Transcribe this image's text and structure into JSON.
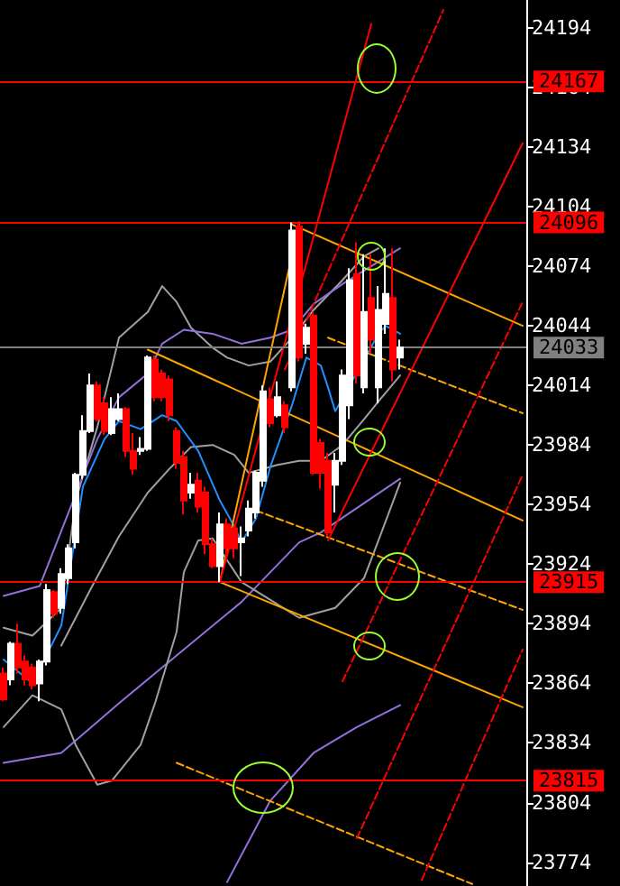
{
  "chart_data": {
    "type": "candlestick",
    "categories": [
      null,
      null,
      null,
      null,
      null,
      null,
      null,
      null,
      null,
      null,
      null,
      null,
      null,
      null,
      null,
      null,
      null,
      null,
      null,
      null,
      null,
      null,
      null,
      null,
      null,
      null,
      null,
      null,
      null,
      null,
      null,
      null,
      null,
      null,
      null,
      null,
      null,
      null,
      null,
      null,
      null,
      null,
      null,
      null,
      null,
      null,
      null,
      null,
      null,
      null,
      null,
      null,
      null,
      null,
      null,
      null,
      null,
      null,
      null,
      null,
      null,
      null,
      null,
      null,
      null,
      null,
      null,
      null,
      null,
      null,
      null,
      null,
      null
    ],
    "ylim": [
      23762,
      24208
    ],
    "yticks": [
      24194,
      24164,
      24134,
      24104,
      24074,
      24044,
      24014,
      23984,
      23954,
      23924,
      23894,
      23864,
      23834,
      23804,
      23774
    ],
    "tick_labels": "y",
    "grid": false,
    "marker": "none",
    "ref_lines": [
      {
        "axis": "y",
        "value": 24167,
        "label": "24167",
        "color": "#ff0000"
      },
      {
        "axis": "y",
        "value": 24096,
        "label": "24096",
        "color": "#ff0000"
      },
      {
        "axis": "y",
        "value": 24033,
        "label": "24033",
        "color": "#808080"
      },
      {
        "axis": "y",
        "value": 23915,
        "label": "23915",
        "color": "#ff0000"
      },
      {
        "axis": "y",
        "value": 23815,
        "label": "23815",
        "color": "#ff0000"
      }
    ],
    "series": [
      {
        "type": "line",
        "color": "#9370db",
        "line_style": "solid",
        "values": [
          23824,
          null,
          null,
          null,
          null,
          null,
          null,
          null,
          23829,
          null,
          null,
          null,
          null,
          null,
          null,
          null,
          23854,
          null,
          null,
          null,
          null,
          null,
          null,
          null,
          23878,
          null,
          null,
          null,
          null,
          null,
          null,
          null,
          null,
          23905,
          null,
          null,
          null,
          null,
          null,
          null,
          null,
          23935,
          null,
          null,
          23940,
          null,
          null,
          null,
          null,
          null,
          null,
          null,
          null,
          null,
          null,
          23967,
          null,
          null,
          null,
          null,
          null,
          null,
          null,
          null,
          null,
          null,
          null,
          null,
          null,
          null,
          null,
          null,
          null
        ]
      },
      {
        "type": "line",
        "color": "#9370db",
        "line_style": "solid",
        "values": [
          null,
          null,
          null,
          null,
          null,
          null,
          null,
          null,
          null,
          null,
          null,
          null,
          null,
          null,
          null,
          null,
          null,
          null,
          null,
          null,
          null,
          null,
          null,
          null,
          null,
          null,
          null,
          null,
          null,
          null,
          null,
          23764,
          null,
          null,
          null,
          null,
          null,
          23805,
          null,
          null,
          null,
          null,
          null,
          23829,
          null,
          null,
          null,
          null,
          null,
          23842,
          null,
          null,
          null,
          null,
          null,
          23853,
          null,
          null,
          null,
          null,
          null,
          null,
          null,
          null,
          null,
          null,
          null,
          null,
          null,
          null,
          null,
          null,
          null
        ]
      },
      {
        "type": "line",
        "color": "#a0a0a0",
        "line_style": "solid",
        "values": [
          23892,
          null,
          null,
          null,
          23888,
          null,
          null,
          null,
          23902,
          null,
          23956,
          null,
          null,
          23993,
          null,
          null,
          24038,
          null,
          null,
          null,
          24051,
          null,
          24064,
          null,
          24056,
          null,
          24043,
          null,
          null,
          24033,
          null,
          24028,
          null,
          null,
          24024,
          null,
          null,
          24026,
          null,
          null,
          24038,
          null,
          null,
          24052,
          null,
          null,
          null,
          24067,
          null,
          null,
          24079,
          null,
          24083,
          null,
          null,
          null,
          null,
          null,
          null,
          null,
          null,
          null,
          null,
          null,
          null,
          null,
          null,
          null,
          null,
          null,
          null,
          null,
          null
        ]
      },
      {
        "type": "line",
        "color": "#a0a0a0",
        "line_style": "solid",
        "values": [
          null,
          null,
          null,
          null,
          null,
          null,
          null,
          null,
          23883,
          null,
          null,
          null,
          23911,
          null,
          null,
          null,
          23938,
          null,
          null,
          null,
          23960,
          null,
          null,
          23972,
          null,
          null,
          23983,
          null,
          null,
          23984,
          null,
          null,
          23979,
          null,
          23970,
          null,
          null,
          null,
          23974,
          null,
          null,
          23976,
          null,
          null,
          23976,
          null,
          null,
          23984,
          null,
          null,
          23997,
          null,
          24006,
          null,
          null,
          24019,
          null,
          null,
          null,
          null,
          null,
          null,
          null,
          null,
          null,
          null,
          null,
          null,
          null,
          null,
          null,
          null,
          null
        ]
      },
      {
        "type": "line",
        "color": "#a0a0a0",
        "line_style": "solid",
        "values": [
          23842,
          null,
          null,
          null,
          23858,
          null,
          null,
          null,
          23851,
          null,
          23833,
          null,
          null,
          23813,
          null,
          23815,
          null,
          null,
          null,
          23833,
          null,
          23854,
          null,
          null,
          23890,
          23920,
          null,
          23936,
          null,
          23937,
          null,
          null,
          null,
          23915,
          null,
          null,
          null,
          23906,
          null,
          null,
          null,
          23897,
          null,
          null,
          null,
          null,
          23902,
          null,
          null,
          null,
          23917,
          null,
          23936,
          null,
          null,
          23965,
          null,
          null,
          null,
          null,
          null,
          null,
          null,
          null,
          null,
          null,
          null,
          null,
          null,
          null,
          null,
          null,
          null
        ]
      },
      {
        "type": "line",
        "color": "#9370db",
        "line_style": "solid",
        "values": [
          23908,
          null,
          null,
          null,
          null,
          23913,
          null,
          null,
          null,
          null,
          null,
          null,
          null,
          23987,
          null,
          null,
          24008,
          null,
          null,
          null,
          24020,
          null,
          24035,
          null,
          null,
          24042,
          null,
          null,
          null,
          24040,
          null,
          null,
          null,
          24035,
          null,
          null,
          null,
          24038,
          null,
          null,
          24042,
          null,
          null,
          24055,
          null,
          null,
          null,
          24065,
          null,
          null,
          null,
          null,
          null,
          null,
          null,
          24083,
          null,
          null,
          null,
          null,
          null,
          null,
          null,
          null,
          null,
          null,
          null,
          null,
          null,
          null,
          null,
          null,
          null
        ]
      },
      {
        "type": "line",
        "color": "#1e90ff",
        "line_style": "solid",
        "values": [
          23876,
          null,
          null,
          null,
          23864,
          null,
          null,
          null,
          23893,
          null,
          null,
          23963,
          null,
          null,
          23987,
          null,
          23996,
          null,
          null,
          23992,
          null,
          null,
          23999,
          null,
          23996,
          null,
          null,
          23981,
          null,
          null,
          23956,
          null,
          23943,
          23935,
          null,
          23947,
          null,
          23973,
          null,
          null,
          24004,
          null,
          24028,
          null,
          24024,
          24013,
          24001,
          null,
          null,
          null,
          null,
          null,
          24040,
          24044,
          null,
          24040,
          null,
          null,
          null,
          null,
          null,
          null,
          null,
          null,
          null,
          null,
          null,
          null,
          null,
          null,
          null,
          null,
          null
        ]
      },
      {
        "type": "line",
        "color": "#ffa500",
        "line_style": "solid",
        "values": [
          null,
          null,
          null,
          null,
          null,
          null,
          null,
          null,
          null,
          null,
          null,
          null,
          null,
          null,
          null,
          null,
          null,
          null,
          null,
          null,
          null,
          null,
          null,
          null,
          null,
          null,
          null,
          null,
          null,
          null,
          null,
          null,
          null,
          null,
          null,
          null,
          null,
          null,
          null,
          null,
          24095,
          null,
          null,
          null,
          null,
          null,
          null,
          null,
          null,
          null,
          null,
          null,
          null,
          null,
          null,
          null,
          null,
          null,
          null,
          null,
          null,
          null,
          null,
          null,
          null,
          null,
          null,
          null,
          null,
          null,
          null,
          null,
          24044
        ]
      },
      {
        "type": "line",
        "color": "#ffa500",
        "line_style": "solid",
        "values": [
          null,
          null,
          null,
          null,
          null,
          null,
          null,
          null,
          null,
          null,
          null,
          null,
          null,
          null,
          null,
          null,
          null,
          null,
          null,
          null,
          24032,
          null,
          null,
          null,
          null,
          null,
          null,
          null,
          null,
          null,
          null,
          null,
          null,
          null,
          null,
          null,
          null,
          null,
          null,
          null,
          null,
          null,
          null,
          null,
          null,
          null,
          null,
          null,
          null,
          null,
          null,
          null,
          null,
          null,
          null,
          null,
          null,
          null,
          null,
          null,
          null,
          null,
          null,
          null,
          null,
          null,
          null,
          null,
          null,
          null,
          null,
          null,
          23946
        ]
      },
      {
        "type": "line",
        "color": "#ffa500",
        "line_style": "solid",
        "values": [
          null,
          null,
          null,
          null,
          null,
          null,
          null,
          null,
          null,
          null,
          null,
          null,
          null,
          null,
          null,
          null,
          null,
          null,
          null,
          null,
          null,
          null,
          null,
          null,
          null,
          null,
          null,
          null,
          null,
          null,
          23915,
          null,
          null,
          null,
          null,
          null,
          null,
          null,
          null,
          null,
          null,
          null,
          null,
          null,
          null,
          null,
          null,
          null,
          null,
          null,
          null,
          null,
          null,
          null,
          null,
          null,
          null,
          null,
          null,
          null,
          null,
          null,
          null,
          null,
          null,
          null,
          null,
          null,
          null,
          null,
          null,
          null,
          23852
        ]
      },
      {
        "type": "line",
        "color": "#ffa500",
        "line_style": "solid",
        "values": [
          null,
          null,
          null,
          null,
          null,
          null,
          null,
          null,
          null,
          null,
          null,
          null,
          null,
          null,
          null,
          null,
          null,
          null,
          null,
          null,
          null,
          null,
          null,
          null,
          null,
          null,
          null,
          null,
          null,
          null,
          23915,
          null,
          null,
          null,
          null,
          null,
          null,
          null,
          null,
          null,
          null,
          24096,
          null,
          null,
          null,
          null,
          null,
          null,
          null,
          null,
          null,
          null,
          null,
          null,
          null,
          null,
          null,
          null,
          null,
          null,
          null,
          null,
          null,
          null,
          null,
          null,
          null,
          null,
          null,
          null,
          null,
          null,
          null
        ]
      },
      {
        "type": "line",
        "color": "#ffa500",
        "line_style": "dashed",
        "values": [
          null,
          null,
          null,
          null,
          null,
          null,
          null,
          null,
          null,
          null,
          null,
          null,
          null,
          null,
          null,
          null,
          null,
          null,
          null,
          null,
          null,
          null,
          null,
          null,
          null,
          null,
          null,
          null,
          null,
          null,
          null,
          null,
          null,
          null,
          null,
          null,
          null,
          null,
          null,
          null,
          null,
          null,
          null,
          null,
          null,
          24038,
          null,
          null,
          null,
          null,
          null,
          null,
          null,
          null,
          null,
          null,
          null,
          null,
          null,
          null,
          null,
          null,
          null,
          null,
          null,
          null,
          null,
          null,
          null,
          null,
          null,
          null,
          24000
        ]
      },
      {
        "type": "line",
        "color": "#ffa500",
        "line_style": "dashed",
        "values": [
          null,
          null,
          null,
          null,
          null,
          null,
          null,
          null,
          null,
          null,
          null,
          null,
          null,
          null,
          null,
          null,
          null,
          null,
          null,
          null,
          null,
          null,
          null,
          null,
          null,
          null,
          null,
          null,
          null,
          null,
          null,
          null,
          null,
          null,
          null,
          23951,
          null,
          null,
          null,
          null,
          null,
          null,
          null,
          null,
          null,
          null,
          null,
          null,
          null,
          null,
          null,
          null,
          null,
          null,
          null,
          null,
          null,
          null,
          null,
          null,
          null,
          null,
          null,
          null,
          null,
          null,
          null,
          null,
          null,
          null,
          null,
          null,
          23901
        ]
      },
      {
        "type": "line",
        "color": "#ffa500",
        "line_style": "dashed",
        "values": [
          null,
          null,
          null,
          null,
          null,
          null,
          null,
          null,
          null,
          null,
          null,
          null,
          null,
          null,
          null,
          null,
          null,
          null,
          null,
          null,
          null,
          null,
          null,
          null,
          23824,
          null,
          null,
          null,
          null,
          null,
          null,
          null,
          null,
          null,
          null,
          null,
          null,
          null,
          null,
          null,
          null,
          null,
          null,
          null,
          null,
          null,
          null,
          null,
          null,
          null,
          null,
          null,
          null,
          null,
          null,
          null,
          null,
          null,
          null,
          null,
          null,
          null,
          null,
          null,
          null,
          23763,
          null,
          null,
          null,
          null,
          null,
          null,
          null
        ]
      },
      {
        "type": "line",
        "color": "#ff0000",
        "line_style": "solid",
        "values": [
          null,
          null,
          null,
          null,
          null,
          null,
          null,
          null,
          null,
          null,
          null,
          null,
          null,
          null,
          null,
          null,
          null,
          null,
          null,
          null,
          null,
          null,
          null,
          null,
          null,
          null,
          null,
          null,
          null,
          null,
          23915,
          null,
          null,
          null,
          null,
          null,
          null,
          null,
          null,
          null,
          null,
          null,
          null,
          null,
          null,
          null,
          null,
          null,
          null,
          null,
          null,
          24196,
          null,
          null,
          null,
          null,
          null,
          null,
          null,
          null,
          null,
          null,
          null,
          null,
          null,
          null,
          null,
          null,
          null,
          null,
          null,
          null,
          null
        ]
      },
      {
        "type": "line",
        "color": "#ff0000",
        "line_style": "solid",
        "values": [
          null,
          null,
          null,
          null,
          null,
          null,
          null,
          null,
          null,
          null,
          null,
          null,
          null,
          null,
          null,
          null,
          null,
          null,
          null,
          null,
          null,
          null,
          null,
          null,
          null,
          null,
          null,
          null,
          null,
          null,
          null,
          null,
          null,
          null,
          null,
          null,
          null,
          null,
          null,
          null,
          null,
          null,
          null,
          null,
          null,
          23936,
          null,
          null,
          null,
          null,
          null,
          null,
          null,
          null,
          null,
          null,
          null,
          null,
          null,
          null,
          null,
          null,
          null,
          null,
          null,
          null,
          null,
          null,
          null,
          null,
          null,
          null,
          24136
        ]
      },
      {
        "type": "line",
        "color": "#ff0000",
        "line_style": "dashed",
        "values": [
          null,
          null,
          null,
          null,
          null,
          null,
          null,
          null,
          null,
          null,
          null,
          null,
          null,
          null,
          null,
          null,
          null,
          null,
          null,
          null,
          null,
          null,
          null,
          null,
          null,
          null,
          null,
          null,
          null,
          null,
          null,
          null,
          null,
          null,
          null,
          null,
          null,
          null,
          null,
          24022,
          null,
          null,
          null,
          null,
          null,
          null,
          null,
          null,
          null,
          null,
          null,
          null,
          null,
          null,
          null,
          null,
          null,
          null,
          null,
          null,
          null,
          24203,
          null,
          null,
          null,
          null,
          null,
          null,
          null,
          null,
          null,
          null,
          null
        ]
      },
      {
        "type": "line",
        "color": "#ff0000",
        "line_style": "dashed",
        "values": [
          null,
          null,
          null,
          null,
          null,
          null,
          null,
          null,
          null,
          null,
          null,
          null,
          null,
          null,
          null,
          null,
          null,
          null,
          null,
          null,
          null,
          null,
          null,
          null,
          null,
          null,
          null,
          null,
          null,
          null,
          null,
          null,
          null,
          null,
          null,
          null,
          null,
          null,
          null,
          null,
          null,
          null,
          null,
          null,
          null,
          null,
          null,
          23865,
          null,
          null,
          null,
          null,
          null,
          null,
          null,
          null,
          null,
          null,
          null,
          null,
          null,
          null,
          null,
          null,
          null,
          null,
          null,
          null,
          null,
          null,
          null,
          null,
          24056
        ]
      },
      {
        "type": "line",
        "color": "#ff0000",
        "line_style": "dashed",
        "values": [
          null,
          null,
          null,
          null,
          null,
          null,
          null,
          null,
          null,
          null,
          null,
          null,
          null,
          null,
          null,
          null,
          null,
          null,
          null,
          null,
          null,
          null,
          null,
          null,
          null,
          null,
          null,
          null,
          null,
          null,
          null,
          null,
          null,
          null,
          null,
          null,
          null,
          null,
          null,
          null,
          null,
          null,
          null,
          null,
          null,
          null,
          null,
          null,
          null,
          23786,
          null,
          null,
          null,
          null,
          null,
          null,
          null,
          null,
          null,
          null,
          null,
          null,
          null,
          null,
          null,
          null,
          null,
          null,
          null,
          null,
          null,
          null,
          23969
        ]
      },
      {
        "type": "line",
        "color": "#ff0000",
        "line_style": "dashed",
        "values": [
          null,
          null,
          null,
          null,
          null,
          null,
          null,
          null,
          null,
          null,
          null,
          null,
          null,
          null,
          null,
          null,
          null,
          null,
          null,
          null,
          null,
          null,
          null,
          null,
          null,
          null,
          null,
          null,
          null,
          null,
          null,
          null,
          null,
          null,
          null,
          null,
          null,
          null,
          null,
          null,
          null,
          null,
          null,
          null,
          null,
          null,
          null,
          null,
          null,
          null,
          null,
          null,
          null,
          null,
          null,
          null,
          null,
          null,
          23765,
          null,
          null,
          null,
          null,
          null,
          null,
          null,
          null,
          null,
          null,
          null,
          null,
          null,
          23881
        ]
      },
      {
        "ohlc": [
          [
            23869,
            23872,
            23855,
            23856
          ],
          [
            23866,
            23885,
            23863,
            23884
          ],
          [
            23884,
            23894,
            23869,
            23872
          ],
          [
            23875,
            23878,
            23863,
            23866
          ],
          [
            23872,
            23874,
            23861,
            23863
          ],
          [
            23864,
            23876,
            23855,
            23875
          ],
          [
            23875,
            23914,
            23873,
            23911
          ],
          [
            23910,
            23911,
            23897,
            23899
          ],
          [
            23902,
            23922,
            23899,
            23919
          ],
          [
            23917,
            23934,
            23914,
            23932
          ],
          [
            23935,
            23970,
            23932,
            23969
          ],
          [
            23969,
            23999,
            23967,
            23991
          ],
          [
            23991,
            24020,
            23990,
            24014
          ],
          [
            24014,
            24016,
            23996,
            23997
          ],
          [
            24005,
            24008,
            23989,
            23991
          ],
          [
            23990,
            24008,
            23989,
            24002
          ],
          [
            23997,
            24010,
            23996,
            24002
          ],
          [
            24002,
            24003,
            23978,
            23981
          ],
          [
            23981,
            23990,
            23969,
            23972
          ],
          [
            23981,
            23988,
            23979,
            23982
          ],
          [
            23982,
            24029,
            23981,
            24028
          ],
          [
            24027,
            24029,
            24006,
            24008
          ],
          [
            24020,
            24022,
            24006,
            24008
          ],
          [
            24017,
            24019,
            23996,
            23999
          ],
          [
            23991,
            23993,
            23972,
            23975
          ],
          [
            23978,
            23981,
            23949,
            23956
          ],
          [
            23960,
            23970,
            23957,
            23964
          ],
          [
            23966,
            23970,
            23950,
            23953
          ],
          [
            23960,
            23963,
            23929,
            23934
          ],
          [
            23934,
            23937,
            23922,
            23923
          ],
          [
            23923,
            23950,
            23915,
            23944
          ],
          [
            23944,
            23947,
            23926,
            23932
          ],
          [
            23942,
            23943,
            23927,
            23932
          ],
          [
            23935,
            23943,
            23918,
            23937
          ],
          [
            23941,
            23956,
            23938,
            23952
          ],
          [
            23950,
            23971,
            23947,
            23970
          ],
          [
            23966,
            24014,
            23963,
            24011
          ],
          [
            24007,
            24013,
            23993,
            23995
          ],
          [
            23999,
            24016,
            23998,
            24008
          ],
          [
            24004,
            24006,
            23990,
            23993
          ],
          [
            24013,
            24096,
            24011,
            24092
          ],
          [
            24094,
            24096,
            24026,
            24028
          ],
          [
            24035,
            24045,
            24030,
            24043
          ],
          [
            24049,
            24051,
            23969,
            23970
          ],
          [
            23985,
            23987,
            23962,
            23970
          ],
          [
            23976,
            23980,
            23938,
            23940
          ],
          [
            23964,
            23980,
            23950,
            23976
          ],
          [
            23976,
            24022,
            23974,
            24019
          ],
          [
            24004,
            24073,
            23997,
            24067
          ],
          [
            24070,
            24086,
            24015,
            24019
          ],
          [
            24013,
            24080,
            24010,
            24051
          ],
          [
            24058,
            24080,
            24030,
            24037
          ],
          [
            24013,
            24064,
            24005,
            24052
          ],
          [
            24045,
            24083,
            24040,
            24060
          ],
          [
            24058,
            24083,
            24016,
            24022
          ],
          [
            24028,
            24037,
            24022,
            24033
          ],
          null,
          null,
          null,
          null,
          null,
          null,
          null,
          null,
          null,
          null,
          null,
          null,
          null,
          null,
          null,
          null,
          null
        ],
        "colors": [
          "#ff0000",
          "#ffffff",
          "#ff0000",
          "#ff0000",
          "#ff0000",
          "#ffffff",
          "#ffffff",
          "#ff0000",
          "#ffffff",
          "#ffffff",
          "#ffffff",
          "#ffffff",
          "#ffffff",
          "#ff0000",
          "#ff0000",
          "#ffffff",
          "#ffffff",
          "#ff0000",
          "#ff0000",
          "#ffffff",
          "#ffffff",
          "#ff0000",
          "#ff0000",
          "#ff0000",
          "#ff0000",
          "#ff0000",
          "#ffffff",
          "#ff0000",
          "#ff0000",
          "#ff0000",
          "#ffffff",
          "#ff0000",
          "#ff0000",
          "#ffffff",
          "#ffffff",
          "#ffffff",
          "#ffffff",
          "#ff0000",
          "#ffffff",
          "#ff0000",
          "#ffffff",
          "#ff0000",
          "#ffffff",
          "#ff0000",
          "#ff0000",
          "#ff0000",
          "#ffffff",
          "#ffffff",
          "#ffffff",
          "#ff0000",
          "#ffffff",
          "#ff0000",
          "#ffffff",
          "#ffffff",
          "#ff0000",
          "#ffffff",
          null,
          null,
          null,
          null,
          null,
          null,
          null,
          null,
          null,
          null,
          null,
          null,
          null,
          null,
          null,
          null,
          null
        ]
      }
    ]
  }
}
